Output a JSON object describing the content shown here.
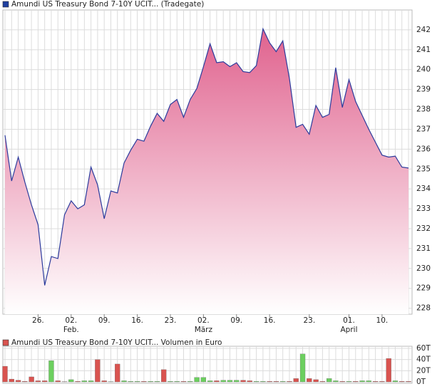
{
  "chart_data": [
    {
      "type": "area-line",
      "title": "Amundi US Treasury Bond 7-10Y UCIT... (Tradegate)",
      "legend_color": "#1f3f9f",
      "line_color": "#2b3a9c",
      "fill_top_color": "#e0628e",
      "fill_bottom_color": "#ffffff",
      "grid": true,
      "categories": [
        null,
        null,
        null,
        null,
        null,
        "26.",
        null,
        null,
        null,
        null,
        "02.",
        null,
        null,
        null,
        null,
        "09.",
        null,
        null,
        null,
        null,
        "16.",
        null,
        null,
        null,
        null,
        "23.",
        null,
        null,
        null,
        null,
        "02.",
        null,
        null,
        null,
        null,
        "09.",
        null,
        null,
        null,
        null,
        "16.",
        null,
        null,
        null,
        null,
        null,
        "23.",
        null,
        null,
        null,
        null,
        null,
        "01.",
        null,
        null,
        null,
        null,
        "10.",
        null,
        null,
        null,
        null
      ],
      "category_months": [
        null,
        null,
        null,
        null,
        null,
        null,
        null,
        null,
        null,
        null,
        "Feb.",
        null,
        null,
        null,
        null,
        null,
        null,
        null,
        null,
        null,
        null,
        null,
        null,
        null,
        null,
        null,
        null,
        null,
        null,
        null,
        "März",
        null,
        null,
        null,
        null,
        null,
        null,
        null,
        null,
        null,
        null,
        null,
        null,
        null,
        null,
        null,
        null,
        null,
        null,
        null,
        null,
        null,
        "April",
        null,
        null,
        null,
        null,
        null,
        null,
        null,
        null,
        null
      ],
      "values": [
        236.7,
        234.4,
        235.6,
        234.35,
        233.2,
        232.2,
        229.15,
        230.6,
        230.5,
        232.7,
        233.4,
        233.0,
        233.2,
        235.1,
        234.2,
        232.5,
        233.9,
        233.8,
        235.3,
        235.95,
        236.5,
        236.4,
        237.15,
        237.8,
        237.4,
        238.25,
        238.5,
        237.6,
        238.5,
        239.05,
        240.15,
        241.3,
        240.35,
        240.4,
        240.15,
        240.35,
        239.9,
        239.85,
        240.2,
        242.05,
        241.35,
        240.9,
        241.45,
        239.55,
        237.1,
        237.25,
        236.75,
        238.2,
        237.6,
        237.75,
        240.1,
        238.1,
        239.5,
        238.4,
        237.7,
        237.0,
        236.35,
        235.7,
        235.6,
        235.65,
        235.1,
        235.05
      ],
      "ylim": [
        227.7,
        243
      ],
      "yticks": [
        228,
        229,
        230,
        231,
        232,
        233,
        234,
        235,
        236,
        237,
        238,
        239,
        240,
        241,
        242
      ]
    },
    {
      "type": "volume-bar",
      "title": "Amundi US Treasury Bond 7-10Y UCIT... Volumen in Euro",
      "legend_color": "#d9534f",
      "grid": true,
      "values": [
        28,
        5,
        3,
        1,
        9,
        2,
        2,
        38,
        2,
        0.5,
        4,
        1,
        2,
        2,
        40,
        2,
        0.5,
        32,
        2,
        1,
        1,
        1,
        1,
        1,
        22,
        1,
        1,
        1,
        1,
        8,
        8,
        2,
        2,
        3,
        3,
        3,
        3,
        2,
        1,
        1,
        1,
        1,
        1,
        1,
        6,
        50,
        6,
        4,
        1,
        6,
        2,
        1,
        1,
        1,
        2,
        2,
        1,
        1,
        42,
        2,
        1,
        1
      ],
      "colors": [
        "#d9534f",
        "#d9534f",
        "#d9534f",
        "#d9534f",
        "#d9534f",
        "#d9534f",
        "#d9534f",
        "#6ccf5f",
        "#d9534f",
        "#d9534f",
        "#6ccf5f",
        "#d9534f",
        "#6ccf5f",
        "#6ccf5f",
        "#d9534f",
        "#d9534f",
        "#6ccf5f",
        "#d9534f",
        "#6ccf5f",
        "#6ccf5f",
        "#6ccf5f",
        "#d9534f",
        "#6ccf5f",
        "#6ccf5f",
        "#d9534f",
        "#6ccf5f",
        "#6ccf5f",
        "#d9534f",
        "#6ccf5f",
        "#6ccf5f",
        "#6ccf5f",
        "#6ccf5f",
        "#d9534f",
        "#6ccf5f",
        "#6ccf5f",
        "#6ccf5f",
        "#d9534f",
        "#d9534f",
        "#6ccf5f",
        "#6ccf5f",
        "#d9534f",
        "#d9534f",
        "#6ccf5f",
        "#d9534f",
        "#d9534f",
        "#6ccf5f",
        "#d9534f",
        "#d9534f",
        "#d9534f",
        "#6ccf5f",
        "#6ccf5f",
        "#d9534f",
        "#6ccf5f",
        "#d9534f",
        "#6ccf5f",
        "#6ccf5f",
        "#d9534f",
        "#d9534f",
        "#d9534f",
        "#6ccf5f",
        "#d9534f",
        "#d9534f"
      ],
      "ylim": [
        0,
        60
      ],
      "yticks": [
        {
          "value": 0,
          "label": "0T"
        },
        {
          "value": 20,
          "label": "20T"
        },
        {
          "value": 40,
          "label": "40T"
        },
        {
          "value": 60,
          "label": "60T"
        }
      ]
    }
  ]
}
